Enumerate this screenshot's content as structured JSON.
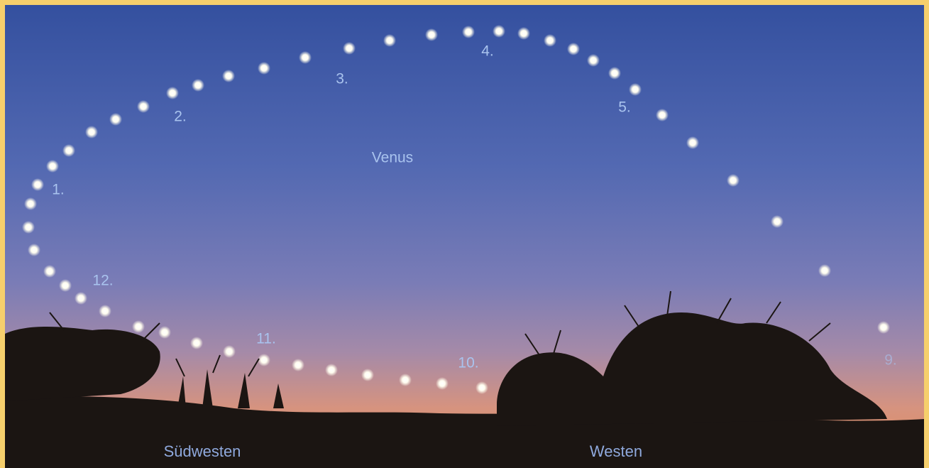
{
  "photo": {
    "name_label": "Venus",
    "position_labels": [
      "1.",
      "2.",
      "3.",
      "4.",
      "5.",
      "9.",
      "10.",
      "11.",
      "12."
    ],
    "direction_labels": [
      "Südwesten",
      "Westen"
    ]
  }
}
